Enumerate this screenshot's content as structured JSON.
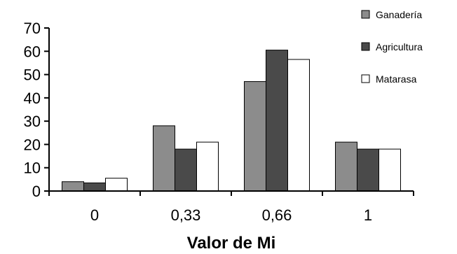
{
  "chart_data": {
    "type": "bar",
    "title": "",
    "xlabel": "Valor de Mi",
    "ylabel": "",
    "categories": [
      "0",
      "0,33",
      "0,66",
      "1"
    ],
    "series": [
      {
        "name": "Ganadería",
        "values": [
          4,
          28,
          47,
          21
        ],
        "color": "#8c8c8c"
      },
      {
        "name": "Agricultura",
        "values": [
          3.5,
          18,
          60.5,
          18
        ],
        "color": "#4a4a4a"
      },
      {
        "name": "Matarasa",
        "values": [
          5.5,
          21,
          56.5,
          18
        ],
        "color": "#ffffff"
      }
    ],
    "ylim": [
      0,
      70
    ],
    "yticks": [
      "0",
      "10",
      "20",
      "30",
      "40",
      "50",
      "60",
      "70"
    ],
    "grid": false,
    "legend_position": "top-right"
  }
}
